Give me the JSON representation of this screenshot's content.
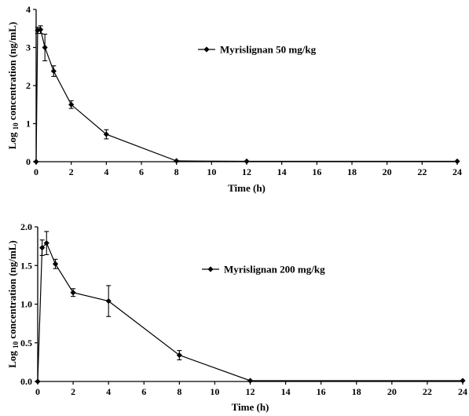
{
  "chart_data": [
    {
      "type": "line",
      "xlabel": "Time (h)",
      "ylabel_parts": [
        "Log",
        "10",
        "concentration (ng/mL)"
      ],
      "xlim": [
        0,
        24
      ],
      "ylim": [
        0,
        4
      ],
      "xticks": [
        0,
        2,
        4,
        6,
        8,
        10,
        12,
        14,
        16,
        18,
        20,
        22,
        24
      ],
      "yticks": [
        0,
        1,
        2,
        3,
        4
      ],
      "ytick_labels": [
        "0",
        "1",
        "2",
        "3",
        "4"
      ],
      "legend_position": "top-right",
      "grid": false,
      "series": [
        {
          "name": "Myrislignan 50 mg/kg",
          "x": [
            0,
            0.083,
            0.25,
            0.5,
            1,
            2,
            4,
            8,
            12,
            24
          ],
          "y": [
            0,
            3.45,
            3.47,
            3.0,
            2.38,
            1.5,
            0.72,
            0.02,
            0.01,
            0.01
          ],
          "err": [
            0,
            0.08,
            0.1,
            0.35,
            0.14,
            0.1,
            0.12,
            0,
            0,
            0
          ]
        }
      ]
    },
    {
      "type": "line",
      "xlabel": "Time (h)",
      "ylabel_parts": [
        "Log",
        "10",
        "concentration (ng/mL)"
      ],
      "xlim": [
        0,
        24
      ],
      "ylim": [
        0,
        2
      ],
      "xticks": [
        0,
        2,
        4,
        6,
        8,
        10,
        12,
        14,
        16,
        18,
        20,
        22,
        24
      ],
      "yticks": [
        0,
        0.5,
        1,
        1.5,
        2
      ],
      "ytick_labels": [
        "0.0",
        "0.5",
        "1.0",
        "1.5",
        "2.0"
      ],
      "legend_position": "top-right",
      "grid": false,
      "series": [
        {
          "name": "Myrislignan 200 mg/kg",
          "x": [
            0,
            0.25,
            0.5,
            1,
            2,
            4,
            8,
            12,
            24
          ],
          "y": [
            0,
            1.73,
            1.79,
            1.52,
            1.15,
            1.04,
            0.34,
            0.01,
            0.01
          ],
          "err": [
            0,
            0.1,
            0.15,
            0.06,
            0.05,
            0.2,
            0.06,
            0,
            0
          ]
        }
      ]
    }
  ]
}
